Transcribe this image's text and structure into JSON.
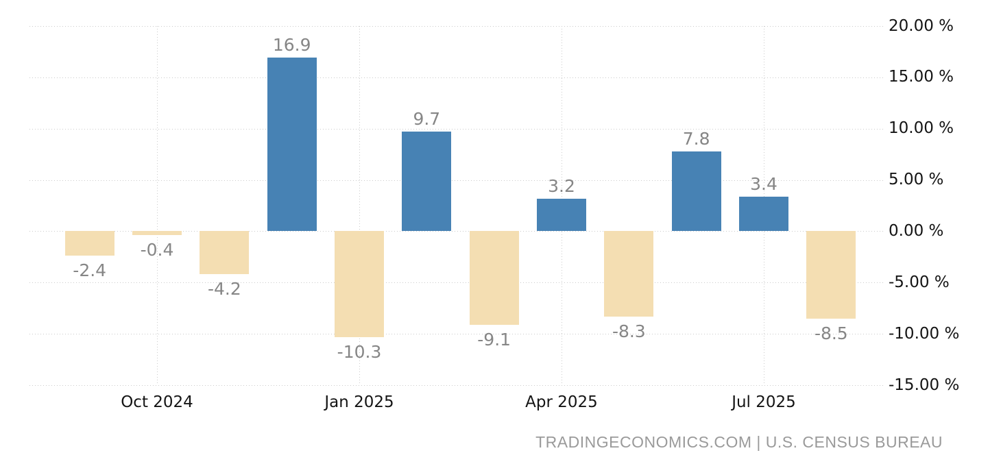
{
  "chart_data": {
    "type": "bar",
    "title": "",
    "xlabel": "",
    "ylabel": "",
    "unit": "%",
    "ylim": [
      -15,
      20
    ],
    "grid": "dotted",
    "legend": "none",
    "values": [
      -2.4,
      -0.4,
      -4.2,
      16.9,
      -10.3,
      9.7,
      -9.1,
      3.2,
      -8.3,
      7.8,
      3.4,
      -8.5
    ],
    "bar_value_labels": [
      "-2.4",
      "-0.4",
      "-4.2",
      "16.9",
      "-10.3",
      "9.7",
      "-9.1",
      "3.2",
      "-8.3",
      "7.8",
      "3.4",
      "-8.5"
    ],
    "x_ticks": [
      {
        "label": "Oct 2024",
        "bar_index": 1
      },
      {
        "label": "Jan 2025",
        "bar_index": 4
      },
      {
        "label": "Apr 2025",
        "bar_index": 7
      },
      {
        "label": "Jul 2025",
        "bar_index": 10
      }
    ],
    "y_ticks": [
      {
        "label": "20.00 %",
        "value": 20
      },
      {
        "label": "15.00 %",
        "value": 15
      },
      {
        "label": "10.00 %",
        "value": 10
      },
      {
        "label": "5.00 %",
        "value": 5
      },
      {
        "label": "0.00 %",
        "value": 0
      },
      {
        "label": "-5.00 %",
        "value": -5
      },
      {
        "label": "-10.00 %",
        "value": -10
      },
      {
        "label": "-15.00 %",
        "value": -15
      }
    ],
    "colors": {
      "positive_bar": "#4782b4",
      "negative_bar": "#f4deb2",
      "value_label": "#868686",
      "axis_label": "#141414",
      "gridline": "#cacaca",
      "background": "#ffffff"
    }
  },
  "footer": {
    "attribution": "TRADINGECONOMICS.COM | U.S. CENSUS BUREAU"
  }
}
